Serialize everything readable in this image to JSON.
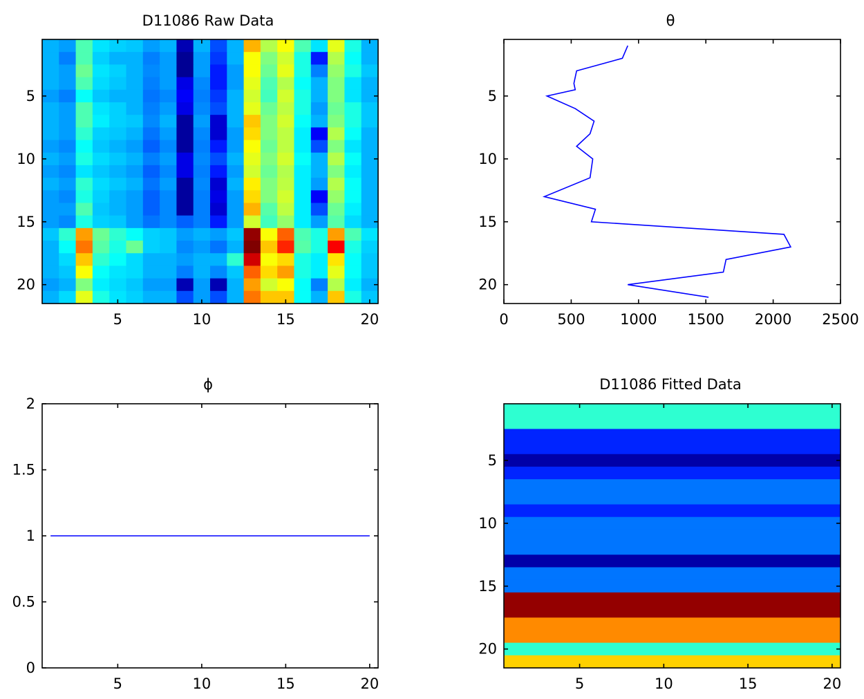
{
  "chart_data": [
    {
      "type": "heatmap",
      "title": "D11086 Raw Data",
      "xlabel": "",
      "ylabel": "",
      "xlim": [
        0.5,
        20.5
      ],
      "ylim": [
        0.5,
        21.5
      ],
      "y_reversed": true,
      "xticks": [
        5,
        10,
        15,
        20
      ],
      "yticks": [
        5,
        10,
        15,
        20
      ],
      "colormap": "jet",
      "clim": [
        0,
        1
      ],
      "values": [
        [
          0.3,
          0.28,
          0.45,
          0.35,
          0.33,
          0.32,
          0.28,
          0.3,
          0.05,
          0.3,
          0.2,
          0.3,
          0.7,
          0.55,
          0.62,
          0.45,
          0.35,
          0.6,
          0.4,
          0.3
        ],
        [
          0.3,
          0.25,
          0.45,
          0.33,
          0.3,
          0.3,
          0.25,
          0.28,
          0.02,
          0.28,
          0.18,
          0.3,
          0.62,
          0.5,
          0.58,
          0.4,
          0.15,
          0.55,
          0.38,
          0.3
        ],
        [
          0.3,
          0.28,
          0.48,
          0.35,
          0.33,
          0.3,
          0.26,
          0.28,
          0.02,
          0.28,
          0.15,
          0.28,
          0.62,
          0.48,
          0.6,
          0.4,
          0.25,
          0.52,
          0.4,
          0.32
        ],
        [
          0.3,
          0.28,
          0.45,
          0.34,
          0.32,
          0.3,
          0.25,
          0.28,
          0.1,
          0.26,
          0.15,
          0.28,
          0.6,
          0.45,
          0.55,
          0.38,
          0.3,
          0.5,
          0.35,
          0.3
        ],
        [
          0.28,
          0.25,
          0.38,
          0.32,
          0.3,
          0.3,
          0.24,
          0.26,
          0.12,
          0.25,
          0.18,
          0.3,
          0.58,
          0.44,
          0.58,
          0.4,
          0.3,
          0.5,
          0.35,
          0.3
        ],
        [
          0.3,
          0.28,
          0.45,
          0.35,
          0.33,
          0.3,
          0.25,
          0.28,
          0.1,
          0.26,
          0.2,
          0.3,
          0.6,
          0.48,
          0.56,
          0.4,
          0.28,
          0.48,
          0.4,
          0.32
        ],
        [
          0.3,
          0.28,
          0.45,
          0.36,
          0.33,
          0.32,
          0.26,
          0.3,
          0.03,
          0.28,
          0.08,
          0.3,
          0.68,
          0.5,
          0.58,
          0.38,
          0.3,
          0.5,
          0.4,
          0.32
        ],
        [
          0.3,
          0.28,
          0.42,
          0.33,
          0.32,
          0.3,
          0.24,
          0.28,
          0.03,
          0.26,
          0.08,
          0.28,
          0.66,
          0.5,
          0.56,
          0.36,
          0.12,
          0.55,
          0.38,
          0.3
        ],
        [
          0.28,
          0.26,
          0.38,
          0.32,
          0.3,
          0.28,
          0.22,
          0.26,
          0.03,
          0.25,
          0.15,
          0.28,
          0.62,
          0.48,
          0.56,
          0.36,
          0.2,
          0.5,
          0.35,
          0.3
        ],
        [
          0.3,
          0.28,
          0.4,
          0.34,
          0.32,
          0.3,
          0.25,
          0.28,
          0.1,
          0.26,
          0.2,
          0.3,
          0.6,
          0.5,
          0.58,
          0.38,
          0.3,
          0.55,
          0.38,
          0.3
        ],
        [
          0.28,
          0.26,
          0.35,
          0.32,
          0.3,
          0.28,
          0.22,
          0.26,
          0.1,
          0.25,
          0.15,
          0.28,
          0.58,
          0.48,
          0.55,
          0.36,
          0.3,
          0.5,
          0.36,
          0.3
        ],
        [
          0.3,
          0.28,
          0.42,
          0.34,
          0.32,
          0.3,
          0.24,
          0.28,
          0.03,
          0.26,
          0.08,
          0.3,
          0.64,
          0.5,
          0.56,
          0.36,
          0.28,
          0.55,
          0.38,
          0.3
        ],
        [
          0.28,
          0.26,
          0.4,
          0.33,
          0.3,
          0.28,
          0.22,
          0.26,
          0.03,
          0.25,
          0.1,
          0.28,
          0.66,
          0.5,
          0.58,
          0.36,
          0.12,
          0.52,
          0.38,
          0.3
        ],
        [
          0.28,
          0.28,
          0.45,
          0.32,
          0.3,
          0.28,
          0.22,
          0.26,
          0.03,
          0.25,
          0.08,
          0.28,
          0.7,
          0.46,
          0.56,
          0.36,
          0.2,
          0.48,
          0.36,
          0.3
        ],
        [
          0.28,
          0.26,
          0.4,
          0.33,
          0.32,
          0.28,
          0.24,
          0.26,
          0.22,
          0.25,
          0.15,
          0.28,
          0.58,
          0.44,
          0.52,
          0.36,
          0.28,
          0.46,
          0.34,
          0.3
        ],
        [
          0.32,
          0.42,
          0.72,
          0.48,
          0.42,
          0.38,
          0.33,
          0.32,
          0.28,
          0.3,
          0.28,
          0.32,
          0.98,
          0.62,
          0.78,
          0.45,
          0.4,
          0.72,
          0.45,
          0.35
        ],
        [
          0.3,
          0.38,
          0.76,
          0.46,
          0.4,
          0.48,
          0.33,
          0.32,
          0.26,
          0.28,
          0.24,
          0.3,
          1.0,
          0.68,
          0.84,
          0.46,
          0.4,
          0.88,
          0.4,
          0.33
        ],
        [
          0.3,
          0.34,
          0.68,
          0.42,
          0.38,
          0.34,
          0.3,
          0.3,
          0.28,
          0.3,
          0.3,
          0.42,
          0.92,
          0.62,
          0.66,
          0.4,
          0.36,
          0.65,
          0.38,
          0.32
        ],
        [
          0.3,
          0.32,
          0.62,
          0.38,
          0.35,
          0.34,
          0.3,
          0.3,
          0.25,
          0.3,
          0.26,
          0.32,
          0.78,
          0.66,
          0.72,
          0.4,
          0.36,
          0.6,
          0.38,
          0.32
        ],
        [
          0.28,
          0.3,
          0.5,
          0.36,
          0.34,
          0.32,
          0.28,
          0.28,
          0.05,
          0.28,
          0.05,
          0.3,
          0.72,
          0.58,
          0.62,
          0.38,
          0.25,
          0.55,
          0.36,
          0.3
        ],
        [
          0.3,
          0.34,
          0.6,
          0.4,
          0.35,
          0.33,
          0.3,
          0.3,
          0.2,
          0.28,
          0.2,
          0.3,
          0.76,
          0.68,
          0.68,
          0.38,
          0.3,
          0.68,
          0.4,
          0.32
        ]
      ]
    },
    {
      "type": "line",
      "title": "θ",
      "xlabel": "",
      "ylabel": "",
      "xlim": [
        0,
        2500
      ],
      "ylim": [
        0.5,
        21.5
      ],
      "y_reversed": true,
      "xticks": [
        0,
        500,
        1000,
        1500,
        2000,
        2500
      ],
      "yticks": [
        5,
        10,
        15,
        20
      ],
      "color": "#0000ff",
      "x": [
        920,
        880,
        540,
        520,
        530,
        320,
        530,
        670,
        640,
        540,
        660,
        640,
        300,
        680,
        650,
        2080,
        2130,
        1650,
        1630,
        920,
        1520
      ],
      "y": [
        1,
        2,
        3,
        4,
        4.5,
        5,
        6,
        7,
        8,
        9,
        10,
        11.5,
        13,
        14,
        15,
        16,
        17,
        18,
        19,
        20,
        21
      ]
    },
    {
      "type": "line",
      "title": "ϕ",
      "xlabel": "",
      "ylabel": "",
      "xlim": [
        0.5,
        20.5
      ],
      "ylim": [
        0,
        2
      ],
      "y_reversed": false,
      "xticks": [
        5,
        10,
        15,
        20
      ],
      "yticks": [
        0,
        0.5,
        1,
        1.5,
        2
      ],
      "ytick_labels": [
        "0",
        "0.5",
        "1",
        "1.5",
        "2"
      ],
      "color": "#0000ff",
      "x": [
        1,
        20
      ],
      "y": [
        1,
        1
      ]
    },
    {
      "type": "heatmap",
      "title": "D11086 Fitted Data",
      "xlabel": "",
      "ylabel": "",
      "xlim": [
        0.5,
        20.5
      ],
      "ylim": [
        0.5,
        21.5
      ],
      "y_reversed": true,
      "xticks": [
        5,
        10,
        15,
        20
      ],
      "yticks": [
        5,
        10,
        15,
        20
      ],
      "colormap": "jet",
      "clim": [
        0,
        1
      ],
      "row_values": [
        0.42,
        0.42,
        0.16,
        0.16,
        0.04,
        0.16,
        0.24,
        0.24,
        0.16,
        0.24,
        0.24,
        0.24,
        0.04,
        0.24,
        0.24,
        0.98,
        0.98,
        0.74,
        0.74,
        0.42,
        0.67
      ]
    }
  ]
}
